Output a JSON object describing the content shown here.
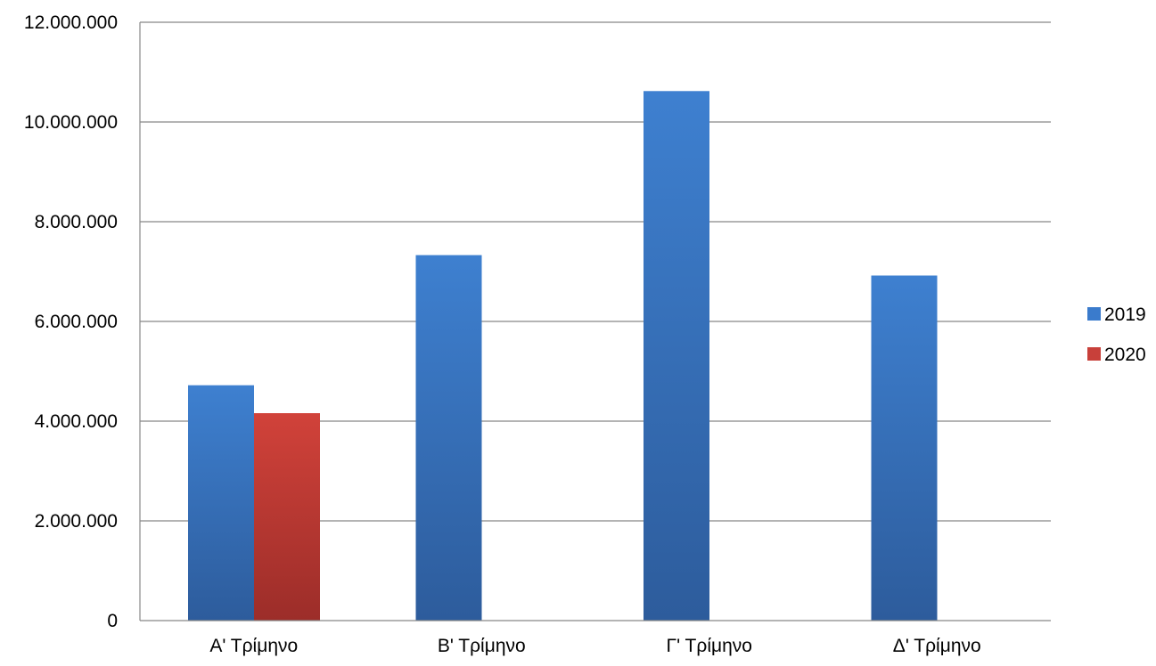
{
  "chart_data": {
    "type": "bar",
    "title": "",
    "xlabel": "",
    "ylabel": "",
    "categories": [
      "Α' Τρίμηνο",
      "Β' Τρίμηνο",
      "Γ' Τρίμηνο",
      "Δ' Τρίμηνο"
    ],
    "series": [
      {
        "name": "2019",
        "values": [
          4720000,
          7330000,
          10620000,
          6920000
        ],
        "color": "#3a7bcc"
      },
      {
        "name": "2020",
        "values": [
          4160000,
          null,
          null,
          null
        ],
        "color": "#c8403a"
      }
    ],
    "ylim": [
      0,
      12000000
    ],
    "yticks": [
      0,
      2000000,
      4000000,
      6000000,
      8000000,
      10000000,
      12000000
    ],
    "ytick_labels": [
      "0",
      "2.000.000",
      "4.000.000",
      "6.000.000",
      "8.000.000",
      "10.000.000",
      "12.000.000"
    ],
    "grid": true,
    "legend_position": "right"
  }
}
